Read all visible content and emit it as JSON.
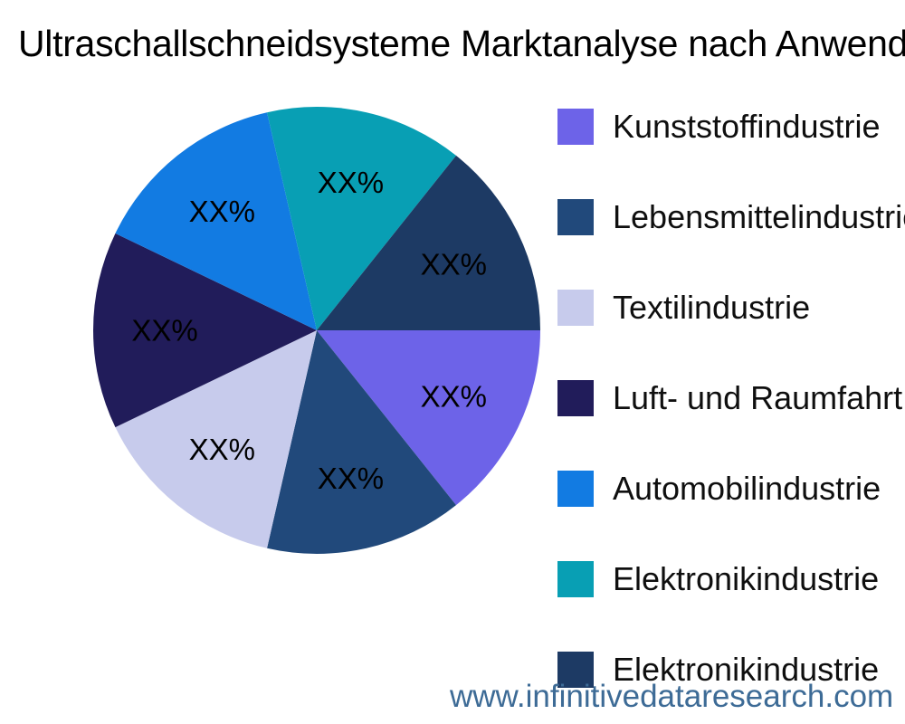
{
  "title": "Ultraschallschneidsysteme Marktanalyse nach Anwendung",
  "watermark": "www.infinitivedataresearch.com",
  "colors": {
    "background": "#FFFFFF",
    "title_text": "#000000",
    "legend_text": "#0F0F0F",
    "slice_label_text": "#000000",
    "watermark_text": "#3D6B96"
  },
  "chart_data": {
    "type": "pie",
    "title": "Ultraschallschneidsysteme Marktanalyse nach Anwendung",
    "legend_position": "right",
    "direction": "clockwise",
    "start_angle_deg": 0,
    "categories": [
      "Kunststoffindustrie",
      "Lebensmittelindustrie",
      "Textilindustrie",
      "Luft- und Raumfahrt",
      "Automobilindustrie",
      "Elektronikindustrie",
      "Elektronikindustrie"
    ],
    "values": [
      14.29,
      14.29,
      14.29,
      14.29,
      14.29,
      14.29,
      14.29
    ],
    "value_labels": [
      "XX%",
      "XX%",
      "XX%",
      "XX%",
      "XX%",
      "XX%",
      "XX%"
    ],
    "colors": [
      "#6D63E8",
      "#21497B",
      "#C7CBEC",
      "#211C5A",
      "#127BE2",
      "#089FB4",
      "#1D3A64"
    ]
  }
}
